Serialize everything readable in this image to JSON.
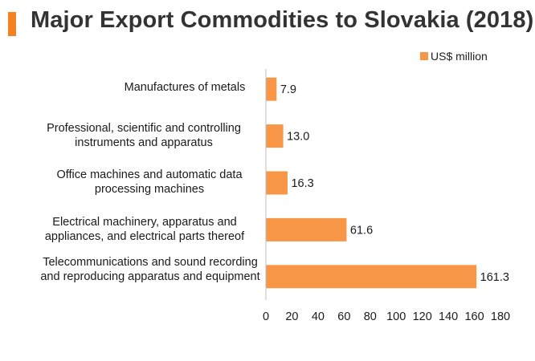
{
  "title": "Major Export Commodities to Slovakia (2018)",
  "accent_color": "#f58220",
  "chart_data": {
    "type": "bar",
    "orientation": "horizontal",
    "categories": [
      "Manufactures of metals",
      "Professional, scientific and controlling instruments and apparatus",
      "Office machines and automatic data processing machines",
      "Electrical machinery, apparatus and appliances, and electrical parts thereof",
      "Telecommunications and sound recording and reproducing apparatus and equipment"
    ],
    "series": [
      {
        "name": "US$ million",
        "values": [
          7.9,
          13.0,
          16.3,
          61.6,
          161.3
        ],
        "color": "#f79646"
      }
    ],
    "data_labels": [
      "7.9",
      "13.0",
      "16.3",
      "61.6",
      "161.3"
    ],
    "xlim": [
      0,
      180
    ],
    "xticks": [
      0,
      20,
      40,
      60,
      80,
      100,
      120,
      140,
      160,
      180
    ],
    "legend_position": "top-right",
    "grid": false
  }
}
